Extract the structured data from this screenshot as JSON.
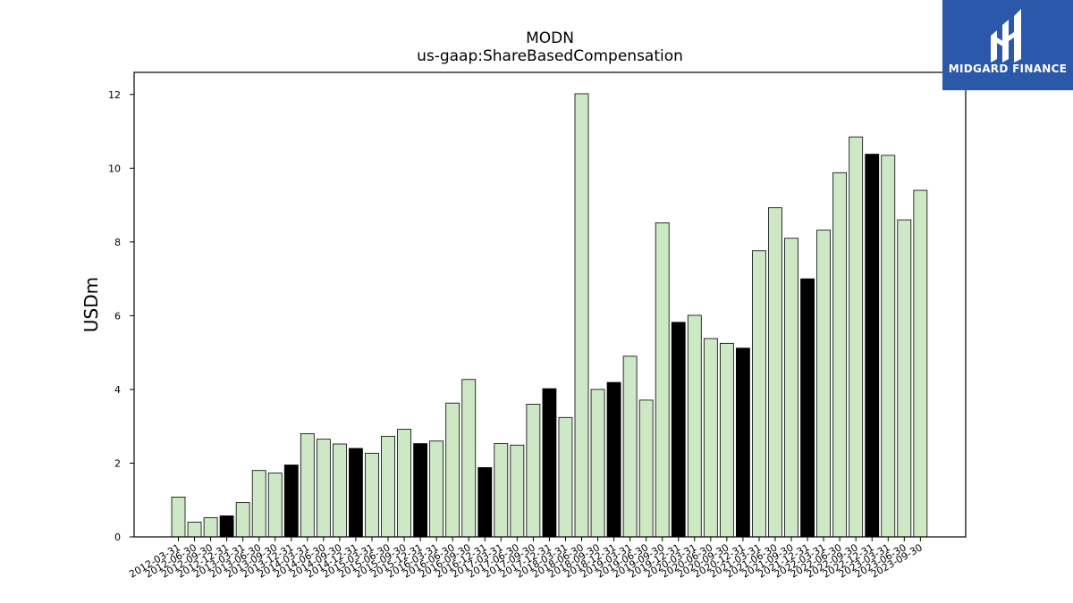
{
  "logo": {
    "text": "MIDGARD FINANCE",
    "background": "#2b58a8"
  },
  "chart_data": {
    "type": "bar",
    "title": "MODN",
    "subtitle": "us-gaap:ShareBasedCompensation",
    "ylabel": "USDm",
    "xlabel": "",
    "ylim": [
      0,
      12.6
    ],
    "yticks": [
      0,
      2,
      4,
      6,
      8,
      10,
      12
    ],
    "grid": false,
    "colors": {
      "quarter": "#cce8c4",
      "fiscal_year": "#000000",
      "edge": "#000000"
    },
    "categories": [
      "2012-03-31",
      "2012-06-30",
      "2012-09-30",
      "2012-12-31",
      "2013-03-31",
      "2013-06-30",
      "2013-09-30",
      "2013-12-31",
      "2014-03-31",
      "2014-06-30",
      "2014-09-30",
      "2014-12-31",
      "2015-03-31",
      "2015-06-30",
      "2015-09-30",
      "2015-12-31",
      "2016-03-31",
      "2016-06-30",
      "2016-09-30",
      "2016-12-31",
      "2017-03-31",
      "2017-06-30",
      "2017-09-30",
      "2017-12-31",
      "2018-03-31",
      "2018-06-30",
      "2018-09-30",
      "2018-12-31",
      "2019-03-31",
      "2019-06-30",
      "2019-09-30",
      "2019-12-31",
      "2020-03-31",
      "2020-06-30",
      "2020-09-30",
      "2020-12-31",
      "2021-03-31",
      "2021-06-30",
      "2021-09-30",
      "2021-12-31",
      "2022-03-31",
      "2022-06-30",
      "2022-09-30",
      "2022-12-31",
      "2023-03-31",
      "2023-06-30",
      "2023-09-30"
    ],
    "values": [
      1.08,
      0.4,
      0.52,
      0.57,
      0.93,
      1.8,
      1.73,
      1.95,
      2.8,
      2.65,
      2.52,
      2.4,
      2.27,
      2.73,
      2.92,
      2.53,
      2.6,
      3.63,
      4.27,
      1.88,
      2.53,
      2.49,
      3.6,
      4.02,
      3.24,
      12.02,
      4.0,
      4.19,
      4.9,
      3.71,
      8.52,
      5.82,
      6.01,
      5.38,
      5.25,
      5.12,
      7.76,
      8.93,
      8.1,
      7.0,
      8.32,
      9.88,
      10.85,
      10.38,
      10.35,
      8.6,
      9.4
    ],
    "highlight": [
      false,
      false,
      false,
      true,
      false,
      false,
      false,
      true,
      false,
      false,
      false,
      true,
      false,
      false,
      false,
      true,
      false,
      false,
      false,
      true,
      false,
      false,
      false,
      true,
      false,
      false,
      false,
      true,
      false,
      false,
      false,
      true,
      false,
      false,
      false,
      true,
      false,
      false,
      false,
      true,
      false,
      false,
      false,
      true,
      false,
      false,
      false
    ]
  }
}
